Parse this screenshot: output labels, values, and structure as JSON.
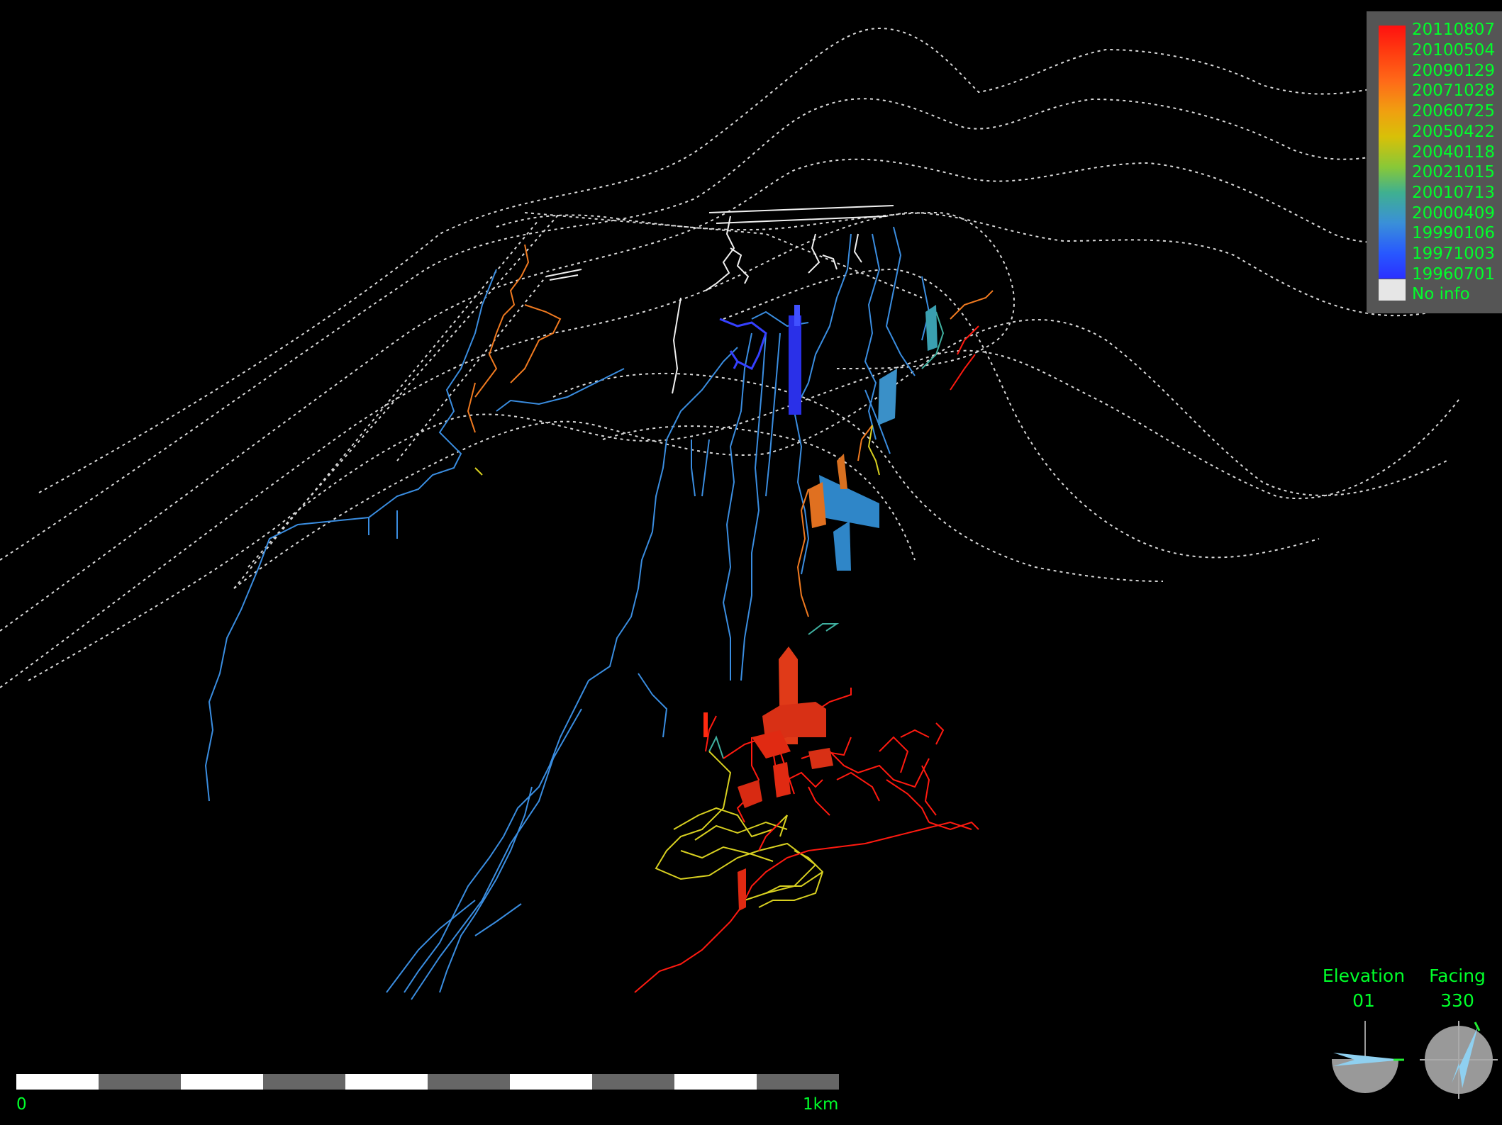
{
  "legend": {
    "dates": [
      "20110807",
      "20100504",
      "20090129",
      "20071028",
      "20060725",
      "20050422",
      "20040118",
      "20021015",
      "20010713",
      "20000409",
      "19990106",
      "19971003",
      "19960701"
    ],
    "no_info_label": "No info",
    "no_info_color": "#e6e6e6",
    "gradient_colors": [
      "#ff1010",
      "#ff6a18",
      "#d8c008",
      "#3fb090",
      "#2858ff"
    ]
  },
  "scale": {
    "start_label": "0",
    "end_label": "1km",
    "segments": 10
  },
  "hud": {
    "elevation_label": "Elevation",
    "elevation_value": "01",
    "facing_label": "Facing",
    "facing_value": "330"
  },
  "colors": {
    "background": "#000000",
    "text_green": "#00ff2a",
    "surface_dotted": "#ffffff",
    "passage_blue": "#3a8de0",
    "passage_red": "#ff1a10",
    "passage_orange": "#f07a20",
    "passage_yellow": "#d8d020"
  }
}
